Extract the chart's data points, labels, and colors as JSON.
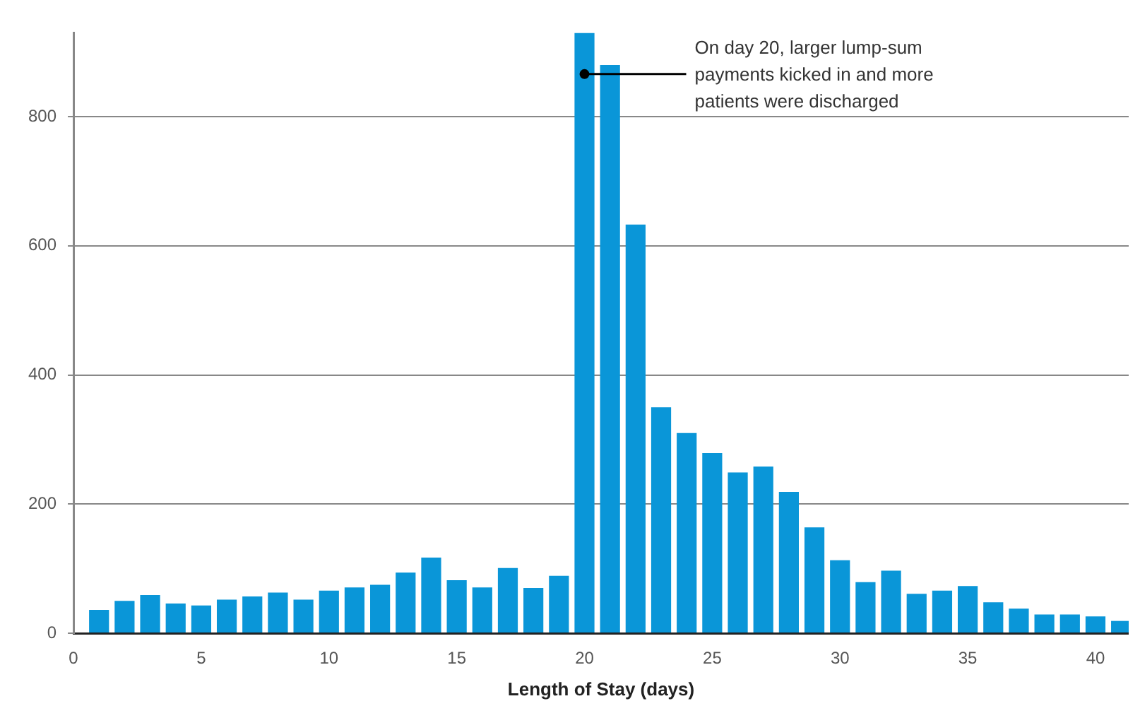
{
  "chart_data": {
    "type": "bar",
    "xlabel": "Length of Stay (days)",
    "x": [
      1,
      2,
      3,
      4,
      5,
      6,
      7,
      8,
      9,
      10,
      11,
      12,
      13,
      14,
      15,
      16,
      17,
      18,
      19,
      20,
      21,
      22,
      23,
      24,
      25,
      26,
      27,
      28,
      29,
      30,
      31,
      32,
      33,
      34,
      35,
      36,
      37,
      38,
      39,
      40,
      41
    ],
    "values": [
      36,
      50,
      59,
      46,
      43,
      52,
      57,
      63,
      52,
      66,
      71,
      75,
      94,
      117,
      82,
      71,
      101,
      70,
      89,
      930,
      880,
      633,
      350,
      310,
      279,
      249,
      258,
      219,
      164,
      113,
      79,
      97,
      61,
      66,
      73,
      48,
      38,
      29,
      29,
      26,
      19
    ],
    "color": "#0a96d8",
    "xlim": [
      0,
      41.3
    ],
    "xticks": [
      0,
      5,
      10,
      15,
      20,
      25,
      30,
      35,
      40
    ],
    "ylim": [
      0,
      930
    ],
    "yticks": [
      0,
      200,
      400,
      600,
      800
    ],
    "grid": "y",
    "annotations": [
      {
        "text": "On day 20, larger lump-sum payments kicked in and more patients were discharged",
        "x": 20,
        "y": 866
      }
    ]
  }
}
